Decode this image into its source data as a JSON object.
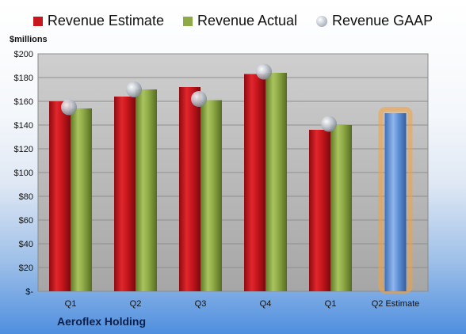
{
  "legend": {
    "estimate_label": "Revenue Estimate",
    "actual_label": "Revenue Actual",
    "gaap_label": "Revenue GAAP"
  },
  "unit_label": "$millions",
  "company": "Aeroflex Holding",
  "colors": {
    "estimate": "#c8161d",
    "actual": "#8eaa46",
    "gaap": "#b9bec6",
    "projected": "#5d8fd6",
    "projected_glow": "#f5a13a",
    "plot_bg": "#c9c9c9"
  },
  "chart_data": {
    "type": "bar",
    "categories": [
      "Q1",
      "Q2",
      "Q3",
      "Q4",
      "Q1",
      "Q2 Estimate"
    ],
    "series": [
      {
        "name": "Revenue Estimate",
        "values": [
          160,
          164,
          172,
          183,
          136,
          null
        ]
      },
      {
        "name": "Revenue Actual",
        "values": [
          154,
          170,
          161,
          184,
          140,
          150
        ]
      },
      {
        "name": "Revenue GAAP",
        "values": [
          155,
          170,
          162,
          185,
          141,
          null
        ]
      }
    ],
    "ylim": [
      0,
      200
    ],
    "yticks": [
      0,
      20,
      40,
      60,
      80,
      100,
      120,
      140,
      160,
      180,
      200
    ],
    "ytick_labels": [
      "$-",
      "$20",
      "$40",
      "$60",
      "$80",
      "$100",
      "$120",
      "$140",
      "$160",
      "$180",
      "$200"
    ],
    "ylabel": "$millions",
    "grid": true,
    "legend_position": "top"
  }
}
